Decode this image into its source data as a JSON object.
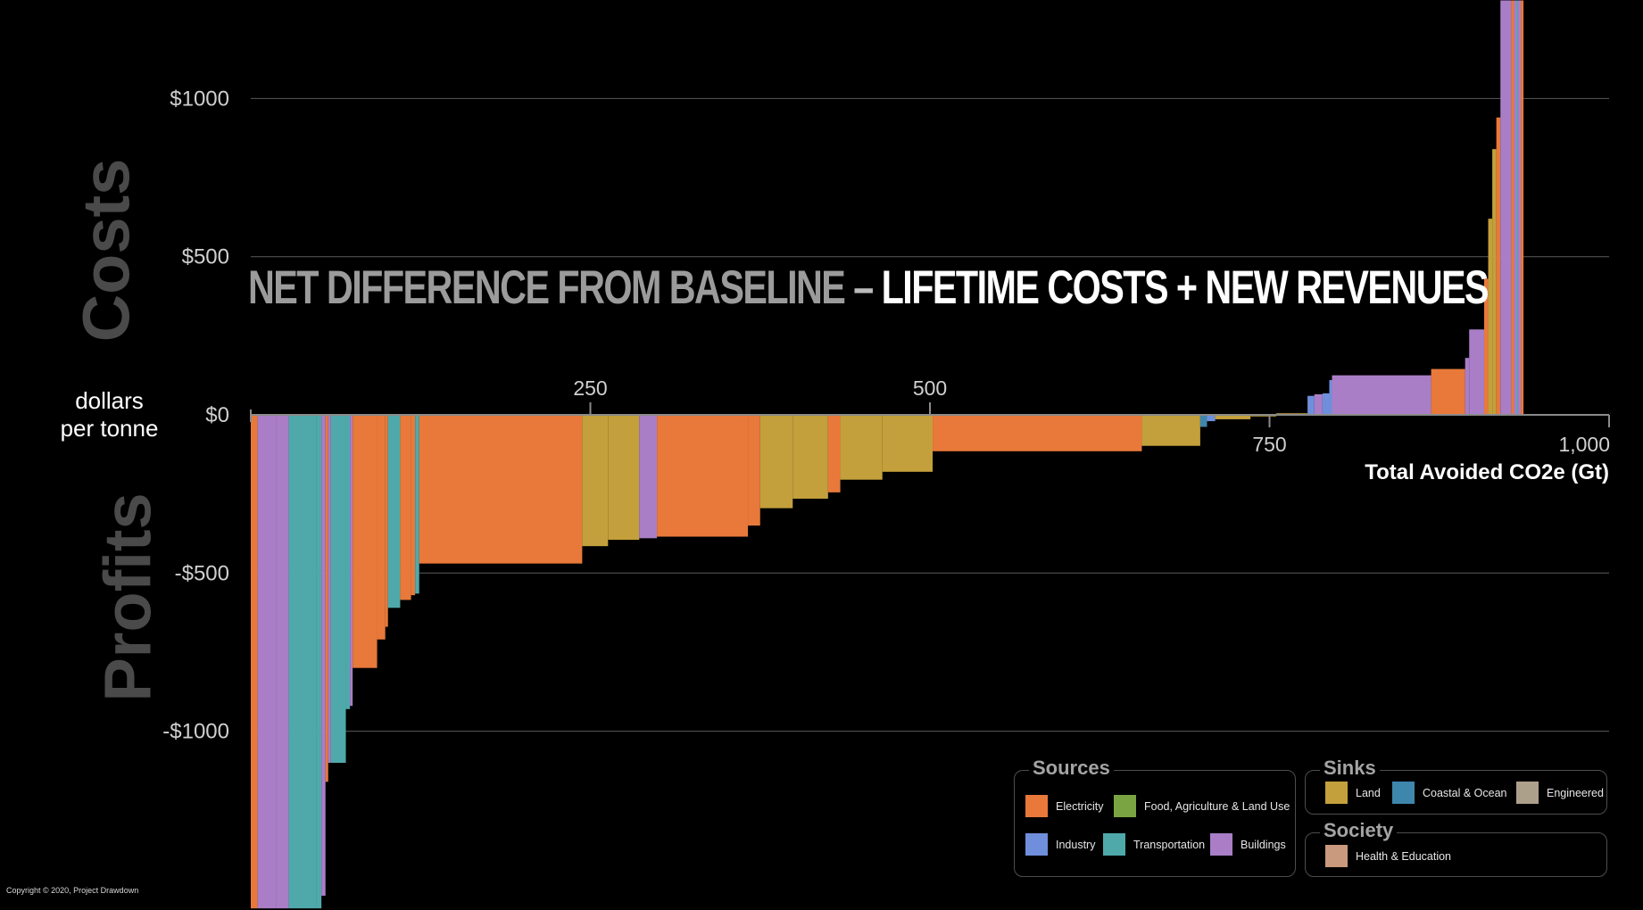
{
  "headline": {
    "part1": "NET DIFFERENCE FROM BASELINE",
    "dash": " – ",
    "part2": "LIFETIME COSTS + NEW REVENUES"
  },
  "side_labels": {
    "top": "Costs",
    "bottom": "Profits"
  },
  "units_label": {
    "line1": "dollars",
    "line2": "per tonne"
  },
  "copyright": "Copyright © 2020, Project Drawdown",
  "colors": {
    "electricity": "#e8793a",
    "food": "#7aa442",
    "industry": "#6f8fdc",
    "transportation": "#4fa9aa",
    "buildings": "#a97ec7",
    "land": "#c3a03b",
    "coastal": "#3f86ad",
    "engineered": "#ada08b",
    "health": "#c99a7e"
  },
  "legend": {
    "sources": {
      "title": "Sources",
      "items": [
        {
          "label": "Electricity",
          "key": "electricity"
        },
        {
          "label": "Food, Agriculture & Land Use",
          "key": "food"
        },
        {
          "label": "Industry",
          "key": "industry"
        },
        {
          "label": "Transportation",
          "key": "transportation"
        },
        {
          "label": "Buildings",
          "key": "buildings"
        }
      ]
    },
    "sinks": {
      "title": "Sinks",
      "items": [
        {
          "label": "Land",
          "key": "land"
        },
        {
          "label": "Coastal & Ocean",
          "key": "coastal"
        },
        {
          "label": "Engineered",
          "key": "engineered"
        }
      ]
    },
    "society": {
      "title": "Society",
      "items": [
        {
          "label": "Health & Education",
          "key": "health"
        }
      ]
    }
  },
  "chart_data": {
    "type": "bar",
    "subtype": "marginal-abatement-cost-curve",
    "xlabel": "Total Avoided CO2e (Gt)",
    "ylabel": "dollars per tonne",
    "xlim": [
      0,
      1000
    ],
    "ylim": [
      -1560,
      1310
    ],
    "x_ticks_above": [
      {
        "value": 250,
        "label": "250"
      },
      {
        "value": 500,
        "label": "500"
      }
    ],
    "x_ticks_below": [
      {
        "value": 750,
        "label": "750"
      },
      {
        "value": 1000,
        "label": "1,000"
      }
    ],
    "y_ticks": [
      {
        "value": 1000,
        "label": "$1000"
      },
      {
        "value": 500,
        "label": "$500"
      },
      {
        "value": 0,
        "label": "$0"
      },
      {
        "value": -500,
        "label": "-$500"
      },
      {
        "value": -1000,
        "label": "-$1000"
      }
    ],
    "grid": true,
    "bars": [
      {
        "x0": 0,
        "x1": 5,
        "y": -1560,
        "sector": "electricity"
      },
      {
        "x0": 5,
        "x1": 19,
        "y": -1560,
        "sector": "buildings"
      },
      {
        "x0": 19,
        "x1": 28,
        "y": -1560,
        "sector": "buildings"
      },
      {
        "x0": 28,
        "x1": 48,
        "y": -1560,
        "sector": "transportation"
      },
      {
        "x0": 48,
        "x1": 52,
        "y": -1560,
        "sector": "transportation"
      },
      {
        "x0": 52,
        "x1": 55,
        "y": -1520,
        "sector": "buildings"
      },
      {
        "x0": 55,
        "x1": 57,
        "y": -1160,
        "sector": "electricity"
      },
      {
        "x0": 57,
        "x1": 59,
        "y": -1100,
        "sector": "buildings"
      },
      {
        "x0": 59,
        "x1": 70,
        "y": -1100,
        "sector": "transportation"
      },
      {
        "x0": 70,
        "x1": 73,
        "y": -930,
        "sector": "transportation"
      },
      {
        "x0": 73,
        "x1": 75,
        "y": -920,
        "sector": "buildings"
      },
      {
        "x0": 75,
        "x1": 93,
        "y": -800,
        "sector": "electricity"
      },
      {
        "x0": 93,
        "x1": 99,
        "y": -710,
        "sector": "electricity"
      },
      {
        "x0": 99,
        "x1": 101,
        "y": -670,
        "sector": "electricity"
      },
      {
        "x0": 101,
        "x1": 110,
        "y": -610,
        "sector": "transportation"
      },
      {
        "x0": 110,
        "x1": 118,
        "y": -585,
        "sector": "electricity"
      },
      {
        "x0": 118,
        "x1": 121,
        "y": -570,
        "sector": "electricity"
      },
      {
        "x0": 121,
        "x1": 124,
        "y": -565,
        "sector": "transportation"
      },
      {
        "x0": 124,
        "x1": 244,
        "y": -470,
        "sector": "electricity"
      },
      {
        "x0": 244,
        "x1": 263,
        "y": -415,
        "sector": "land"
      },
      {
        "x0": 263,
        "x1": 286,
        "y": -395,
        "sector": "land"
      },
      {
        "x0": 286,
        "x1": 299,
        "y": -390,
        "sector": "buildings"
      },
      {
        "x0": 299,
        "x1": 366,
        "y": -385,
        "sector": "electricity"
      },
      {
        "x0": 366,
        "x1": 375,
        "y": -350,
        "sector": "electricity"
      },
      {
        "x0": 375,
        "x1": 399,
        "y": -295,
        "sector": "land"
      },
      {
        "x0": 399,
        "x1": 425,
        "y": -265,
        "sector": "land"
      },
      {
        "x0": 425,
        "x1": 434,
        "y": -245,
        "sector": "electricity"
      },
      {
        "x0": 434,
        "x1": 465,
        "y": -205,
        "sector": "land"
      },
      {
        "x0": 465,
        "x1": 502,
        "y": -180,
        "sector": "land"
      },
      {
        "x0": 502,
        "x1": 656,
        "y": -115,
        "sector": "electricity"
      },
      {
        "x0": 656,
        "x1": 699,
        "y": -98,
        "sector": "land"
      },
      {
        "x0": 699,
        "x1": 704,
        "y": -38,
        "sector": "coastal"
      },
      {
        "x0": 704,
        "x1": 710,
        "y": -20,
        "sector": "industry"
      },
      {
        "x0": 710,
        "x1": 736,
        "y": -14,
        "sector": "land"
      },
      {
        "x0": 736,
        "x1": 755,
        "y": -5,
        "sector": "land"
      },
      {
        "x0": 755,
        "x1": 778,
        "y": 5,
        "sector": "land"
      },
      {
        "x0": 778,
        "x1": 783,
        "y": 60,
        "sector": "industry"
      },
      {
        "x0": 783,
        "x1": 789,
        "y": 65,
        "sector": "buildings"
      },
      {
        "x0": 789,
        "x1": 794,
        "y": 68,
        "sector": "industry"
      },
      {
        "x0": 794,
        "x1": 796,
        "y": 110,
        "sector": "industry"
      },
      {
        "x0": 796,
        "x1": 869,
        "y": 125,
        "sector": "buildings"
      },
      {
        "x0": 869,
        "x1": 894,
        "y": 145,
        "sector": "electricity"
      },
      {
        "x0": 894,
        "x1": 897,
        "y": 180,
        "sector": "buildings"
      },
      {
        "x0": 897,
        "x1": 908,
        "y": 270,
        "sector": "buildings"
      },
      {
        "x0": 908,
        "x1": 911,
        "y": 430,
        "sector": "electricity"
      },
      {
        "x0": 911,
        "x1": 914,
        "y": 620,
        "sector": "land"
      },
      {
        "x0": 914,
        "x1": 917,
        "y": 840,
        "sector": "land"
      },
      {
        "x0": 917,
        "x1": 920,
        "y": 940,
        "sector": "electricity"
      },
      {
        "x0": 920,
        "x1": 928,
        "y": 1310,
        "sector": "buildings"
      },
      {
        "x0": 928,
        "x1": 930,
        "y": 1310,
        "sector": "electricity"
      },
      {
        "x0": 930,
        "x1": 932,
        "y": 1310,
        "sector": "buildings"
      },
      {
        "x0": 932,
        "x1": 933,
        "y": 1310,
        "sector": "transportation"
      },
      {
        "x0": 933,
        "x1": 935,
        "y": 1310,
        "sector": "buildings"
      },
      {
        "x0": 935,
        "x1": 937,
        "y": 1310,
        "sector": "electricity"
      }
    ]
  }
}
